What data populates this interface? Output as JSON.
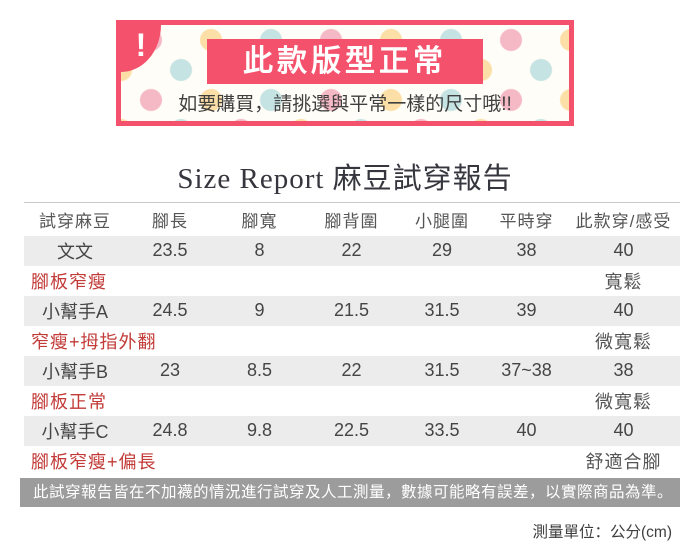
{
  "banner": {
    "exclamation": "!",
    "title": "此款版型正常",
    "subtitle": "如要購買，請挑選與平常一樣的尺寸哦!!"
  },
  "report": {
    "title_en": "Size Report",
    "title_zh": "麻豆試穿報告"
  },
  "table": {
    "headers": [
      "試穿麻豆",
      "腳長",
      "腳寬",
      "腳背圍",
      "小腿圍",
      "平時穿",
      "此款穿/感受"
    ],
    "rows": [
      {
        "type": "model",
        "cells": [
          "文文",
          "23.5",
          "8",
          "22",
          "29",
          "38",
          "40"
        ]
      },
      {
        "type": "condition",
        "label": "腳板窄瘦",
        "feel": "寬鬆"
      },
      {
        "type": "model",
        "cells": [
          "小幫手A",
          "24.5",
          "9",
          "21.5",
          "31.5",
          "39",
          "40"
        ]
      },
      {
        "type": "condition",
        "label": "窄瘦+拇指外翻",
        "feel": "微寬鬆"
      },
      {
        "type": "model",
        "cells": [
          "小幫手B",
          "23",
          "8.5",
          "22",
          "31.5",
          "37~38",
          "38"
        ]
      },
      {
        "type": "condition",
        "label": "腳板正常",
        "feel": "微寬鬆"
      },
      {
        "type": "model",
        "cells": [
          "小幫手C",
          "24.8",
          "9.8",
          "22.5",
          "33.5",
          "40",
          "40"
        ]
      },
      {
        "type": "condition",
        "label": "腳板窄瘦+偏長",
        "feel": "舒適合腳"
      }
    ]
  },
  "note": "此試穿報告皆在不加襪的情況進行試穿及人工測量，數據可能略有誤差，以實際商品為準。",
  "footer": "測量單位：公分(cm)",
  "colors": {
    "pink": "#f4516c",
    "red_text": "#c23b38",
    "note_bg": "#9c9c9c",
    "row_bg": "#ececec",
    "cream": "#fffdf7",
    "dot_pink": "#f5b9c6",
    "dot_yellow": "#fbdfa6",
    "dot_teal": "#c6e3e3"
  }
}
